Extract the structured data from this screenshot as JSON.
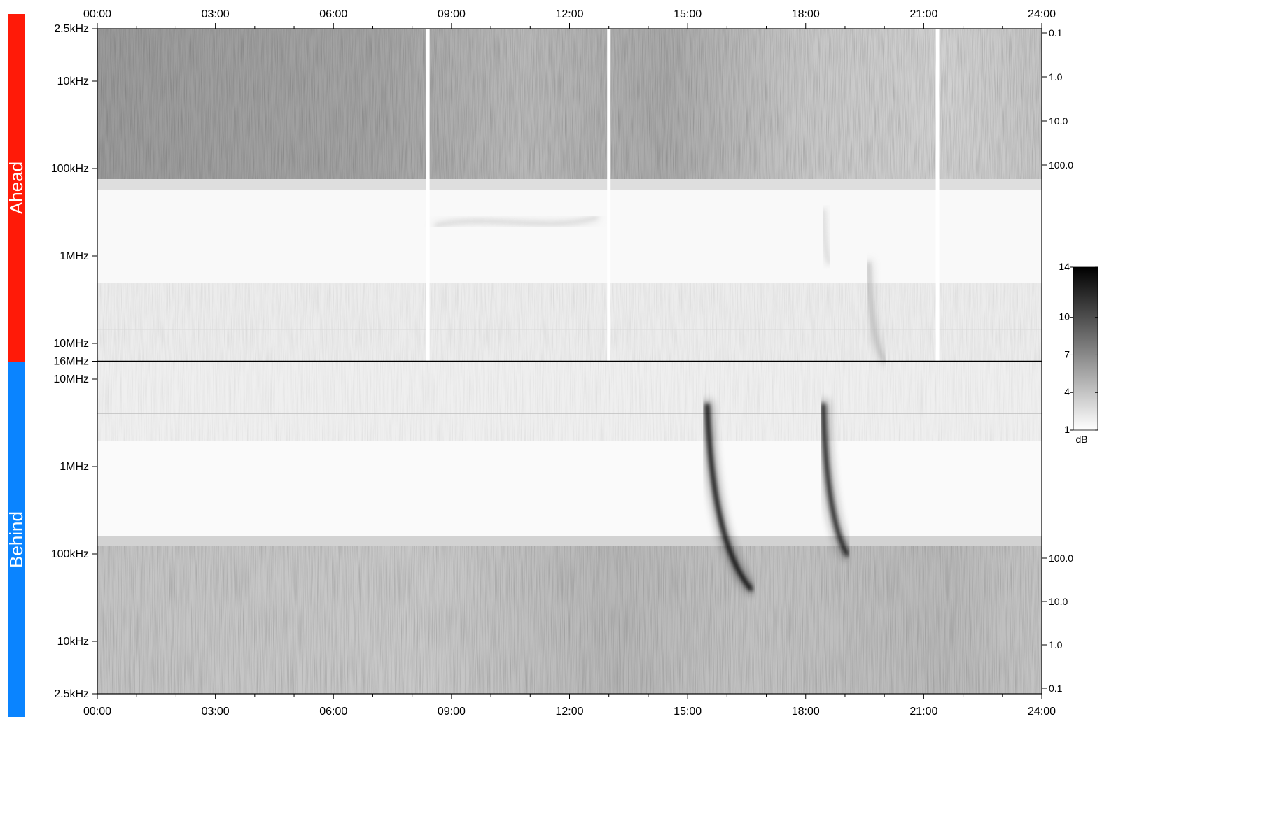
{
  "panels": [
    {
      "label": "Ahead",
      "color": "#ff1a08",
      "freq_ticks": [
        "2.5kHz",
        "10kHz",
        "100kHz",
        "1MHz",
        "10MHz",
        "16MHz"
      ],
      "right_ticks": [
        "0.1",
        "1.0",
        "10.0",
        "100.0"
      ]
    },
    {
      "label": "Behind",
      "color": "#0a84ff",
      "freq_ticks": [
        "10MHz",
        "1MHz",
        "100kHz",
        "10kHz",
        "2.5kHz"
      ],
      "right_ticks": [
        "100.0",
        "10.0",
        "1.0",
        "0.1"
      ]
    }
  ],
  "time_ticks": [
    "00:00",
    "03:00",
    "06:00",
    "09:00",
    "12:00",
    "15:00",
    "18:00",
    "21:00",
    "24:00"
  ],
  "colorbar": {
    "unit": "dB",
    "ticks": [
      "14",
      "10",
      "7",
      "4",
      "1"
    ],
    "colors": [
      "#ffffff",
      "#000000"
    ]
  },
  "chart_data": {
    "type": "heatmap",
    "x_unit": "UT hours",
    "xlim": [
      0,
      24
    ],
    "ylim_hz": [
      2500,
      16000000
    ],
    "y_scale": "log",
    "zlim_db": [
      1,
      14
    ],
    "data_gaps_hours": [
      8.4,
      13.0,
      21.35
    ],
    "features": [
      {
        "panel": "Behind",
        "t_start": 15.5,
        "t_end": 16.6,
        "f_start_hz": 5000000,
        "f_end_hz": 40000,
        "peak_db": 14
      },
      {
        "panel": "Behind",
        "t_start": 18.45,
        "t_end": 19.05,
        "f_start_hz": 5000000,
        "f_end_hz": 100000,
        "peak_db": 13
      },
      {
        "panel": "Ahead",
        "t_start": 19.6,
        "t_end": 20.0,
        "f_start_hz": 1200000,
        "f_end_hz": 16000000,
        "peak_db": 6
      },
      {
        "panel": "Ahead",
        "t_start": 18.45,
        "t_end": 18.6,
        "f_start_hz": 300000,
        "f_end_hz": 1200000,
        "peak_db": 4
      },
      {
        "panel": "Ahead",
        "t_start": 8.6,
        "t_end": 12.7,
        "f_start_hz": 450000,
        "f_end_hz": 450000,
        "peak_db": 4
      }
    ]
  }
}
